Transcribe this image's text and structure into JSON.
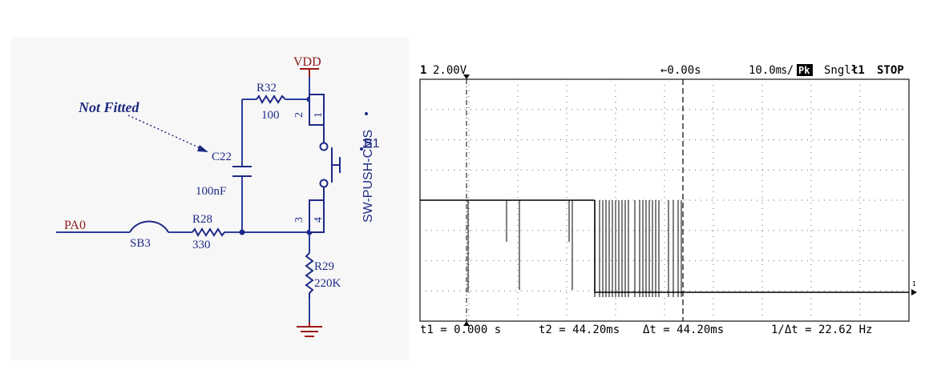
{
  "schematic": {
    "not_fitted": "Not Fitted",
    "vdd": "VDD",
    "pa0": "PA0",
    "sb3": "SB3",
    "r32": {
      "ref": "R32",
      "value": "100"
    },
    "c22": {
      "ref": "C22",
      "value": "100nF"
    },
    "r28": {
      "ref": "R28",
      "value": "330"
    },
    "r29": {
      "ref": "R29",
      "value": "220K"
    },
    "switch": {
      "part": "SW-PUSH-CMS",
      "ref": "B1"
    },
    "pins": [
      "1",
      "2",
      "3",
      "4"
    ],
    "colors": {
      "wire": "#2b3ea0",
      "power": "#a01818",
      "label": "#8a1a1a",
      "component": "#1e2a86",
      "annotation": "#1d2a80"
    }
  },
  "scope": {
    "header": {
      "channel": "1",
      "volts_div": "2.00V",
      "delay": "←0.00s",
      "time_div": "10.0㎳/",
      "mode_badge": "Pk",
      "trigger_mode": "Sngl",
      "trigger_symbol": "ł1",
      "run_state": "STOP"
    },
    "footer": {
      "t1": "t1 = 0.000 s",
      "t2": "t2 = 44.20ms",
      "delta_t": "Δt = 44.20ms",
      "inv_delta_t": "1/Δt = 22.62 Hz"
    },
    "ground_marker": "1",
    "colors": {
      "trace": "#000000",
      "grid": "#444444"
    }
  }
}
